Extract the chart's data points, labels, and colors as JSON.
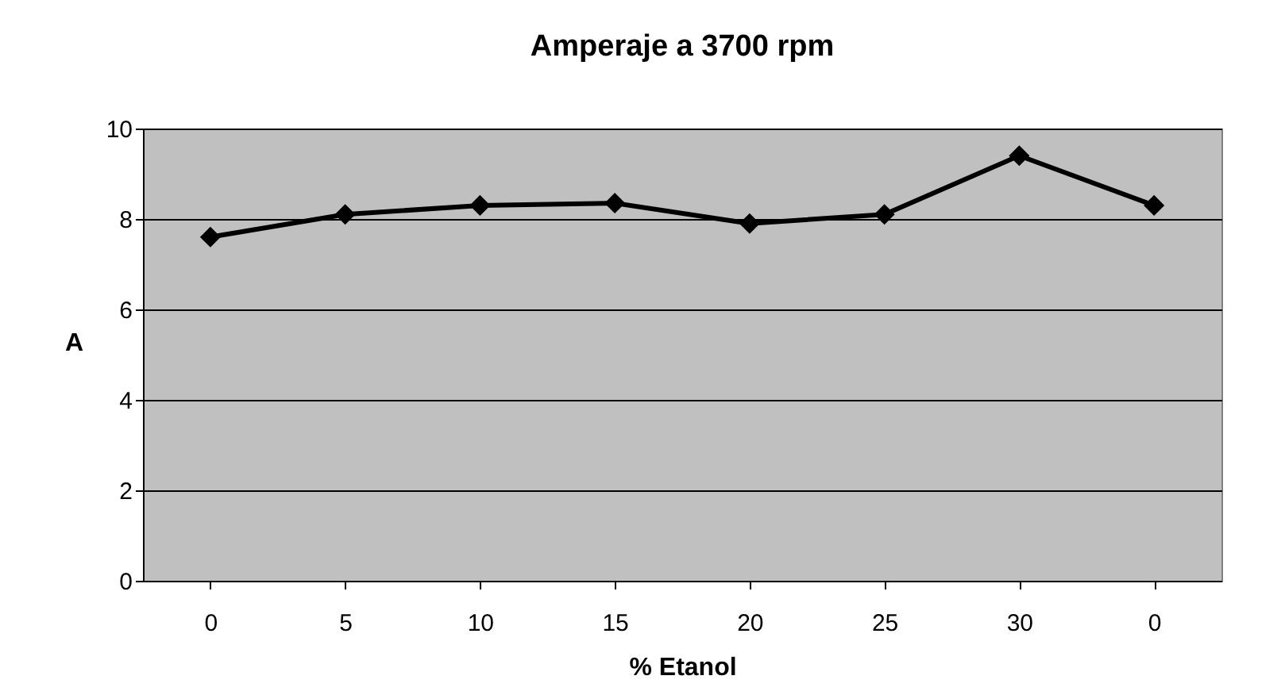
{
  "chart_data": {
    "type": "line",
    "title": "Amperaje a 3700 rpm",
    "xlabel": "% Etanol",
    "ylabel": "A",
    "categories": [
      "0",
      "5",
      "10",
      "15",
      "20",
      "25",
      "30",
      "0"
    ],
    "series": [
      {
        "color": "#000000",
        "values": [
          7.6,
          8.1,
          8.3,
          8.35,
          7.9,
          8.1,
          9.4,
          8.3
        ]
      }
    ],
    "ylim": [
      0,
      10
    ],
    "yticks": [
      0,
      2,
      4,
      6,
      8,
      10
    ],
    "grid": "y",
    "marker": "diamond",
    "line_style": "solid"
  }
}
